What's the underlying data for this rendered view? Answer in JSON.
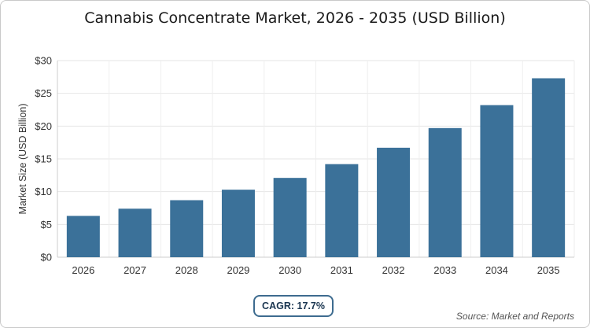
{
  "chart_data": {
    "type": "bar",
    "title": "Cannabis Concentrate Market, 2026 - 2035 (USD Billion)",
    "ylabel": "Market Size (USD Billion)",
    "xlabel": "",
    "categories": [
      "2026",
      "2027",
      "2028",
      "2029",
      "2030",
      "2031",
      "2032",
      "2033",
      "2034",
      "2035"
    ],
    "values": [
      6.3,
      7.4,
      8.7,
      10.3,
      12.1,
      14.2,
      16.7,
      19.7,
      23.2,
      27.3
    ],
    "ylim": [
      0,
      30
    ],
    "yticks": [
      0,
      5,
      10,
      15,
      20,
      25,
      30
    ],
    "ytick_labels": [
      "$0",
      "$5",
      "$10",
      "$15",
      "$20",
      "$25",
      "$30"
    ],
    "grid": true,
    "bar_color": "#3b7199"
  },
  "cagr_label": "CAGR: 17.7%",
  "source": "Source: Market and Reports"
}
